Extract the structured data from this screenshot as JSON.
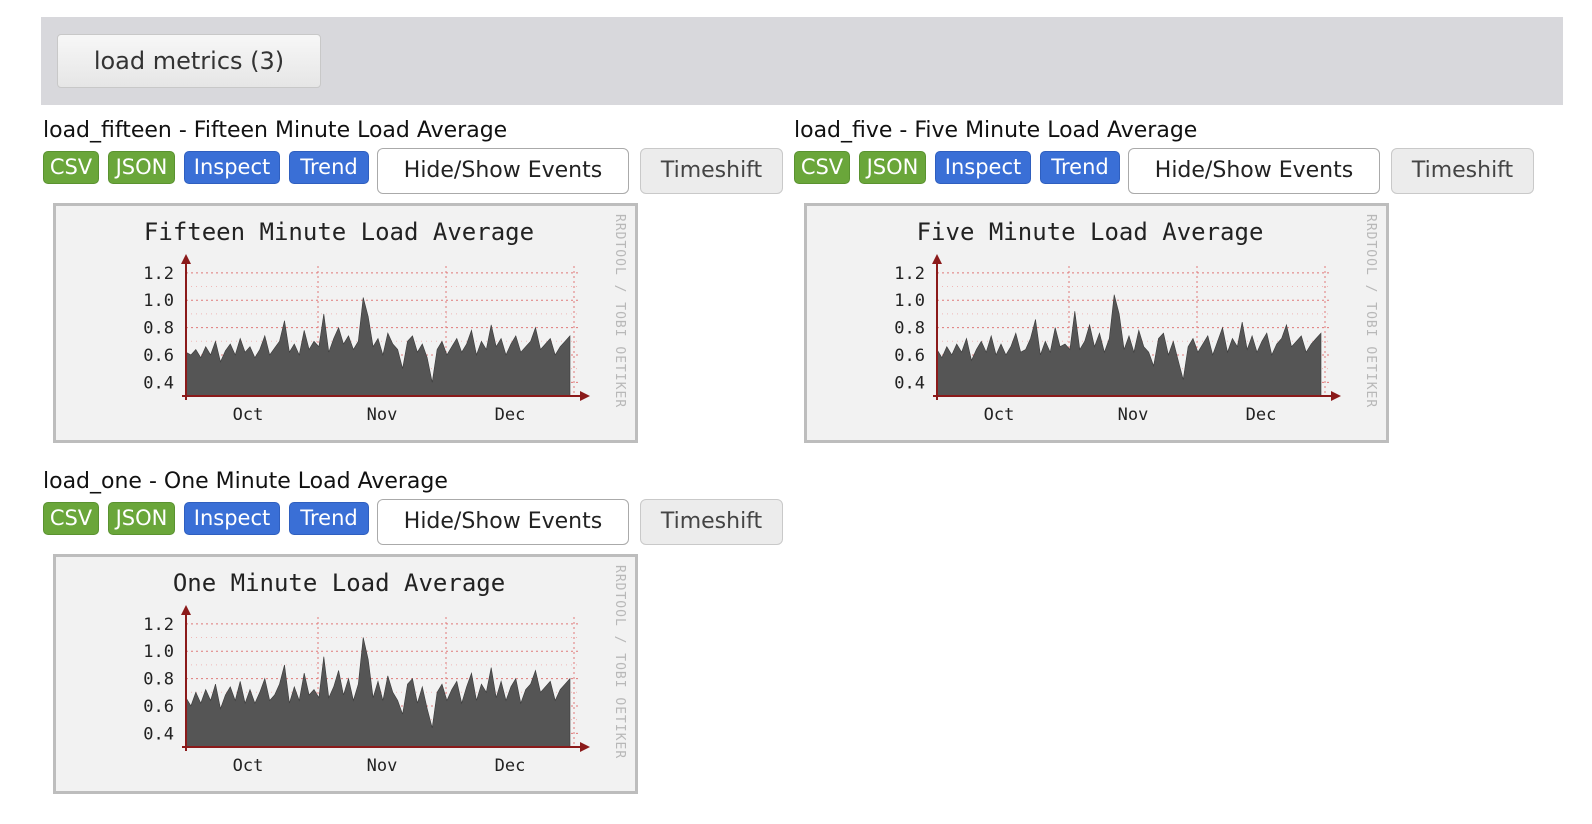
{
  "group_button": "load metrics (3)",
  "buttons": {
    "csv": "CSV",
    "json": "JSON",
    "inspect": "Inspect",
    "trend": "Trend",
    "hide_show": "Hide/Show Events",
    "timeshift": "Timeshift"
  },
  "colors": {
    "header_bar": "#d8d8dc",
    "csv_json_green": "#6aa63a",
    "inspect_trend_blue": "#3a6fd6",
    "area_fill": "#555555",
    "grid": "#e07a7a",
    "axis": "#8b1a1a"
  },
  "watermark": "RRDTOOL / TOBI OETIKER",
  "metrics": [
    {
      "title": "load_fifteen - Fifteen Minute Load Average",
      "has_timeshift": true,
      "graph_title": "Fifteen Minute Load Average"
    },
    {
      "title": "load_five - Five Minute Load Average",
      "has_timeshift": true,
      "graph_title": "Five Minute Load Average"
    },
    {
      "title": "load_one - One Minute Load Average",
      "has_timeshift": true,
      "graph_title": "One Minute Load Average"
    }
  ],
  "chart_data": [
    {
      "type": "area",
      "title": "Fifteen Minute Load Average",
      "x_ticks": [
        "Oct",
        "Nov",
        "Dec"
      ],
      "y_ticks": [
        "0.4",
        "0.6",
        "0.8",
        "1.0",
        "1.2"
      ],
      "ylim": [
        0.3,
        1.25
      ],
      "grid": true,
      "series": [
        {
          "values": [
            0.62,
            0.6,
            0.64,
            0.58,
            0.66,
            0.6,
            0.7,
            0.55,
            0.63,
            0.68,
            0.6,
            0.72,
            0.62,
            0.66,
            0.58,
            0.64,
            0.74,
            0.6,
            0.65,
            0.7,
            0.85,
            0.62,
            0.68,
            0.6,
            0.78,
            0.64,
            0.7,
            0.66,
            0.9,
            0.62,
            0.72,
            0.8,
            0.68,
            0.74,
            0.64,
            0.7,
            1.02,
            0.88,
            0.66,
            0.72,
            0.6,
            0.76,
            0.68,
            0.64,
            0.5,
            0.7,
            0.74,
            0.62,
            0.68,
            0.58,
            0.4,
            0.64,
            0.7,
            0.6,
            0.66,
            0.72,
            0.62,
            0.68,
            0.78,
            0.6,
            0.7,
            0.64,
            0.82,
            0.66,
            0.72,
            0.6,
            0.68,
            0.74,
            0.62,
            0.66,
            0.7,
            0.8,
            0.64,
            0.68,
            0.72,
            0.6,
            0.66,
            0.7,
            0.74
          ]
        }
      ]
    },
    {
      "type": "area",
      "title": "Five Minute Load Average",
      "x_ticks": [
        "Oct",
        "Nov",
        "Dec"
      ],
      "y_ticks": [
        "0.4",
        "0.6",
        "0.8",
        "1.0",
        "1.2"
      ],
      "ylim": [
        0.3,
        1.25
      ],
      "grid": true,
      "series": [
        {
          "values": [
            0.64,
            0.58,
            0.66,
            0.6,
            0.68,
            0.62,
            0.72,
            0.56,
            0.64,
            0.7,
            0.62,
            0.74,
            0.6,
            0.68,
            0.6,
            0.66,
            0.76,
            0.62,
            0.64,
            0.72,
            0.86,
            0.6,
            0.7,
            0.62,
            0.8,
            0.66,
            0.68,
            0.64,
            0.92,
            0.64,
            0.7,
            0.82,
            0.66,
            0.76,
            0.62,
            0.72,
            1.04,
            0.9,
            0.64,
            0.74,
            0.62,
            0.78,
            0.66,
            0.62,
            0.52,
            0.72,
            0.76,
            0.6,
            0.7,
            0.56,
            0.42,
            0.66,
            0.72,
            0.62,
            0.68,
            0.74,
            0.6,
            0.7,
            0.8,
            0.62,
            0.72,
            0.66,
            0.84,
            0.64,
            0.74,
            0.62,
            0.7,
            0.76,
            0.6,
            0.68,
            0.72,
            0.82,
            0.66,
            0.7,
            0.74,
            0.62,
            0.68,
            0.72,
            0.76
          ]
        }
      ]
    },
    {
      "type": "area",
      "title": "One Minute Load Average",
      "x_ticks": [
        "Oct",
        "Nov",
        "Dec"
      ],
      "y_ticks": [
        "0.4",
        "0.6",
        "0.8",
        "1.0",
        "1.2"
      ],
      "ylim": [
        0.3,
        1.25
      ],
      "grid": true,
      "series": [
        {
          "values": [
            0.66,
            0.6,
            0.7,
            0.62,
            0.72,
            0.64,
            0.76,
            0.58,
            0.68,
            0.74,
            0.64,
            0.78,
            0.62,
            0.72,
            0.62,
            0.7,
            0.8,
            0.64,
            0.68,
            0.76,
            0.9,
            0.62,
            0.74,
            0.64,
            0.84,
            0.68,
            0.72,
            0.66,
            0.96,
            0.66,
            0.74,
            0.86,
            0.68,
            0.8,
            0.64,
            0.76,
            1.1,
            0.94,
            0.66,
            0.78,
            0.64,
            0.82,
            0.7,
            0.64,
            0.54,
            0.76,
            0.8,
            0.62,
            0.74,
            0.58,
            0.44,
            0.7,
            0.76,
            0.64,
            0.72,
            0.78,
            0.62,
            0.74,
            0.84,
            0.64,
            0.76,
            0.7,
            0.88,
            0.66,
            0.78,
            0.64,
            0.74,
            0.8,
            0.62,
            0.72,
            0.76,
            0.86,
            0.7,
            0.74,
            0.78,
            0.64,
            0.72,
            0.76,
            0.8
          ]
        }
      ]
    }
  ]
}
